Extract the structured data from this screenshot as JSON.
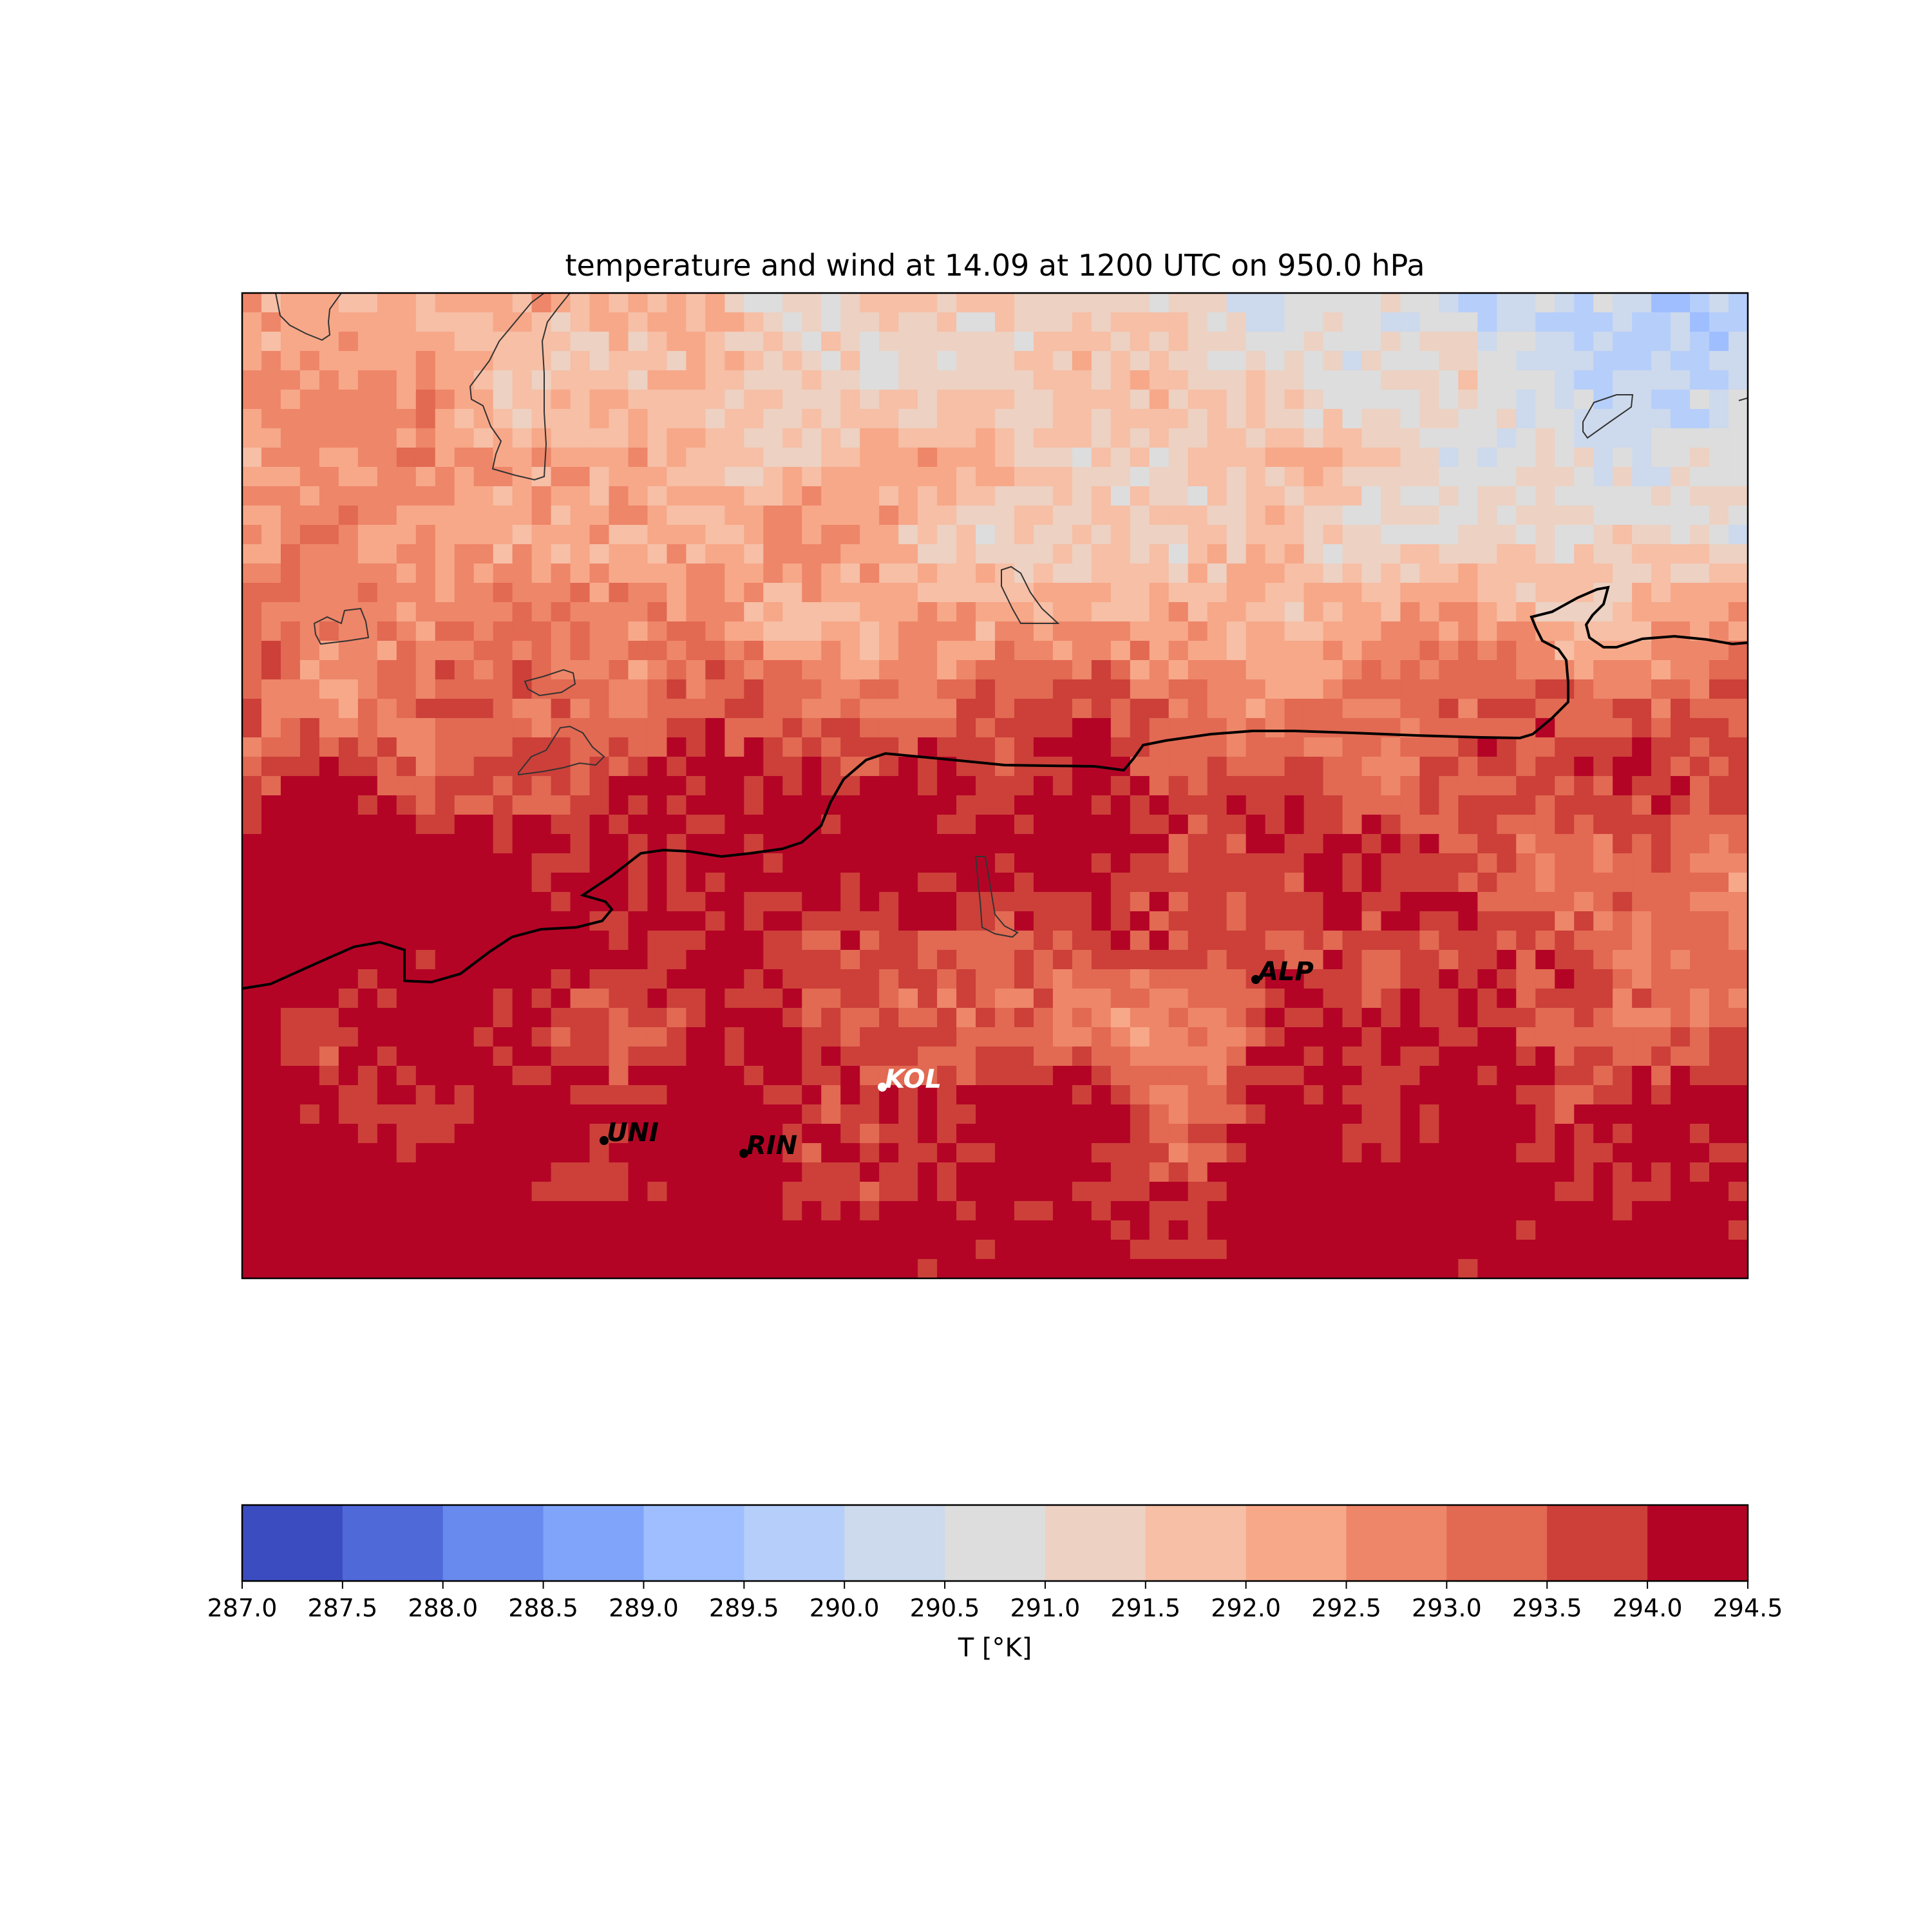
{
  "title": "temperature and wind at 14.09 at 1200 UTC on 950.0 hPa",
  "chart_data": {
    "type": "heatmap",
    "title": "temperature and wind at 14.09 at 1200 UTC on 950.0 hPa",
    "variable": "T",
    "colorbar": {
      "label": "T [°K]",
      "orientation": "horizontal",
      "placement": "bottom",
      "levels": [
        287.0,
        287.5,
        288.0,
        288.5,
        289.0,
        289.5,
        290.0,
        290.5,
        291.0,
        291.5,
        292.0,
        292.5,
        293.0,
        293.5,
        294.0,
        294.5
      ],
      "tick_labels": [
        "287.0",
        "287.5",
        "288.0",
        "288.5",
        "289.0",
        "289.5",
        "290.0",
        "290.5",
        "291.0",
        "291.5",
        "292.0",
        "292.5",
        "293.0",
        "293.5",
        "294.0",
        "294.5"
      ],
      "colors": [
        "#3b4cc0",
        "#4f69d9",
        "#688aef",
        "#81a4fb",
        "#9ebeff",
        "#b6cefa",
        "#cdd9ec",
        "#dddddd",
        "#edd1c2",
        "#f6bfa6",
        "#f7a889",
        "#ee8669",
        "#e26952",
        "#cc4039",
        "#b40426"
      ]
    },
    "field_pattern": "temperature increases from about 290.5–291.5 K in the north-east to above 294.0 K in the southern half; a warm band (>294 K) runs west–east across the centre and south",
    "stations": [
      {
        "name": "ALP",
        "text_color": "#000000"
      },
      {
        "name": "KOL",
        "text_color": "#ffffff"
      },
      {
        "name": "UNI",
        "text_color": "#000000"
      },
      {
        "name": "RIN",
        "text_color": "#000000"
      }
    ],
    "features": [
      "coastline / border lines",
      "lake outlines"
    ]
  }
}
